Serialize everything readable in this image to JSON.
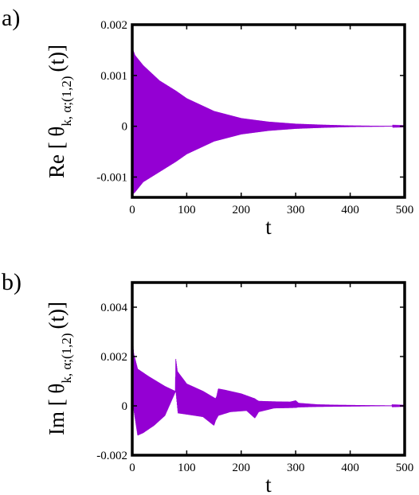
{
  "chart_data": [
    {
      "type": "line",
      "panel_label": "a)",
      "xlabel": "t",
      "ylabel": {
        "prefix": "Re [ θ",
        "subscript": "k, α;(1,2)",
        "suffix": "(t)]"
      },
      "xlim": [
        0,
        500
      ],
      "ylim": [
        -0.0014,
        0.002
      ],
      "xticks": [
        0,
        100,
        200,
        300,
        400,
        500
      ],
      "xtick_labels": [
        "0",
        "100",
        "200",
        "300",
        "400",
        "500"
      ],
      "yticks": [
        -0.001,
        0,
        0.001,
        0.002
      ],
      "ytick_labels": [
        "-0.001",
        "0",
        "0.001",
        "0.002"
      ],
      "color": "#9400d3",
      "series": [
        {
          "envelope_upper": [
            [
              0,
              0.00155
            ],
            [
              5,
              0.0014
            ],
            [
              20,
              0.0012
            ],
            [
              50,
              0.0009
            ],
            [
              80,
              0.0007
            ],
            [
              100,
              0.00055
            ],
            [
              150,
              0.0003
            ],
            [
              200,
              0.00016
            ],
            [
              250,
              9e-05
            ],
            [
              300,
              5e-05
            ],
            [
              350,
              3e-05
            ],
            [
              400,
              1.5e-05
            ],
            [
              450,
              8e-06
            ],
            [
              500,
              4e-06
            ]
          ],
          "envelope_lower": [
            [
              0,
              -0.00135
            ],
            [
              5,
              -0.0013
            ],
            [
              20,
              -0.0011
            ],
            [
              50,
              -0.0009
            ],
            [
              80,
              -0.0007
            ],
            [
              100,
              -0.00055
            ],
            [
              150,
              -0.0003
            ],
            [
              200,
              -0.00016
            ],
            [
              250,
              -9e-05
            ],
            [
              300,
              -5e-05
            ],
            [
              350,
              -3e-05
            ],
            [
              400,
              -1.5e-05
            ],
            [
              450,
              -8e-06
            ],
            [
              500,
              -4e-06
            ]
          ]
        }
      ]
    },
    {
      "type": "line",
      "panel_label": "b)",
      "xlabel": "t",
      "ylabel": {
        "prefix": "Im [ θ",
        "subscript": "k, α;(1,2)",
        "suffix": "(t)]"
      },
      "xlim": [
        0,
        500
      ],
      "ylim": [
        -0.002,
        0.005
      ],
      "xticks": [
        0,
        100,
        200,
        300,
        400,
        500
      ],
      "xtick_labels": [
        "0",
        "100",
        "200",
        "300",
        "400",
        "500"
      ],
      "yticks": [
        -0.002,
        0,
        0.002,
        0.004
      ],
      "ytick_labels": [
        "-0.002",
        "0",
        "0.002",
        "0.004"
      ],
      "color": "#9400d3",
      "series": [
        {
          "envelope_upper": [
            [
              0,
              0.0028
            ],
            [
              3,
              0.0021
            ],
            [
              10,
              0.0015
            ],
            [
              30,
              0.0012
            ],
            [
              60,
              0.0008
            ],
            [
              79,
              0.0006
            ],
            [
              80,
              0.0019
            ],
            [
              83,
              0.0014
            ],
            [
              100,
              0.0009
            ],
            [
              130,
              0.0006
            ],
            [
              153,
              0.0003
            ],
            [
              155,
              0.0004
            ],
            [
              158,
              0.0007
            ],
            [
              170,
              0.00065
            ],
            [
              200,
              0.0005
            ],
            [
              225,
              0.0003
            ],
            [
              228,
              0.00025
            ],
            [
              232,
              0.0002
            ],
            [
              260,
              0.00018
            ],
            [
              290,
              0.00017
            ],
            [
              300,
              0.00022
            ],
            [
              305,
              0.00012
            ],
            [
              340,
              6e-05
            ],
            [
              380,
              4e-05
            ],
            [
              420,
              3e-05
            ],
            [
              460,
              2e-05
            ],
            [
              500,
              1e-05
            ]
          ],
          "envelope_lower": [
            [
              0,
              0.0002
            ],
            [
              3,
              -0.0002
            ],
            [
              10,
              -0.0012
            ],
            [
              20,
              -0.0011
            ],
            [
              40,
              -0.0008
            ],
            [
              60,
              -0.0004
            ],
            [
              79,
              0.00055
            ],
            [
              80,
              0.0006
            ],
            [
              84,
              -0.0003
            ],
            [
              100,
              -0.00035
            ],
            [
              130,
              -0.00045
            ],
            [
              150,
              -0.0008
            ],
            [
              153,
              -0.0006
            ],
            [
              158,
              -0.0004
            ],
            [
              180,
              -0.00025
            ],
            [
              210,
              -0.0002
            ],
            [
              225,
              -0.0005
            ],
            [
              228,
              -0.0004
            ],
            [
              232,
              -0.00025
            ],
            [
              260,
              -0.0001
            ],
            [
              300,
              -8e-05
            ],
            [
              305,
              -6e-05
            ],
            [
              340,
              -4e-05
            ],
            [
              380,
              -3e-05
            ],
            [
              420,
              -2e-05
            ],
            [
              460,
              -1e-05
            ],
            [
              500,
              -5e-06
            ]
          ]
        }
      ]
    }
  ]
}
